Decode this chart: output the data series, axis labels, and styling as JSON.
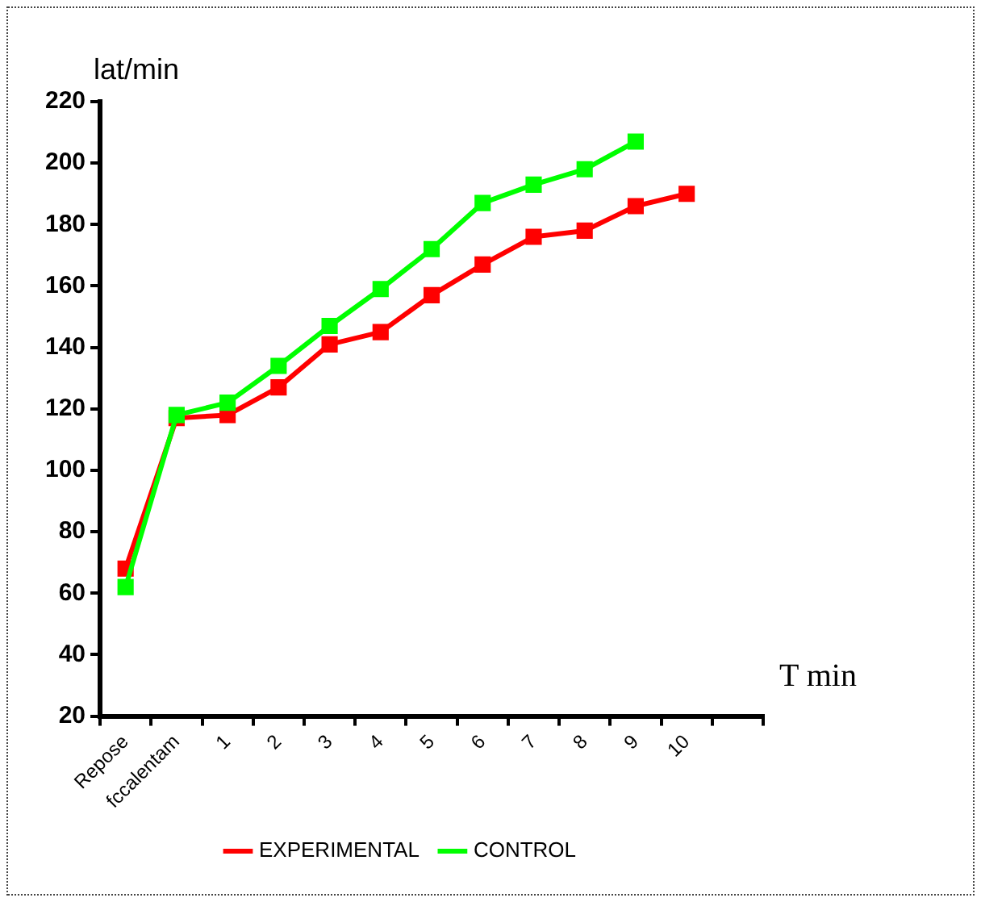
{
  "chart_data": {
    "type": "line",
    "ylabel": "lat/min",
    "xlabel": "T min",
    "categories": [
      "Repose",
      "fccalentam",
      "1",
      "2",
      "3",
      "4",
      "5",
      "6",
      "7",
      "8",
      "9",
      "10",
      null
    ],
    "series": [
      {
        "name": "EXPERIMENTAL",
        "color": "#ff0000",
        "values": [
          68,
          117,
          118,
          127,
          141,
          145,
          157,
          167,
          176,
          178,
          186,
          190,
          null
        ]
      },
      {
        "name": "CONTROL",
        "color": "#00ff00",
        "values": [
          62,
          118,
          122,
          134,
          147,
          159,
          172,
          187,
          193,
          198,
          207,
          null,
          null
        ]
      }
    ],
    "ylim": [
      20,
      220
    ],
    "yticks": [
      20,
      40,
      60,
      80,
      100,
      120,
      140,
      160,
      180,
      200,
      220
    ],
    "grid": false,
    "legend": "bottom",
    "marker": "square",
    "line_style": "solid"
  }
}
